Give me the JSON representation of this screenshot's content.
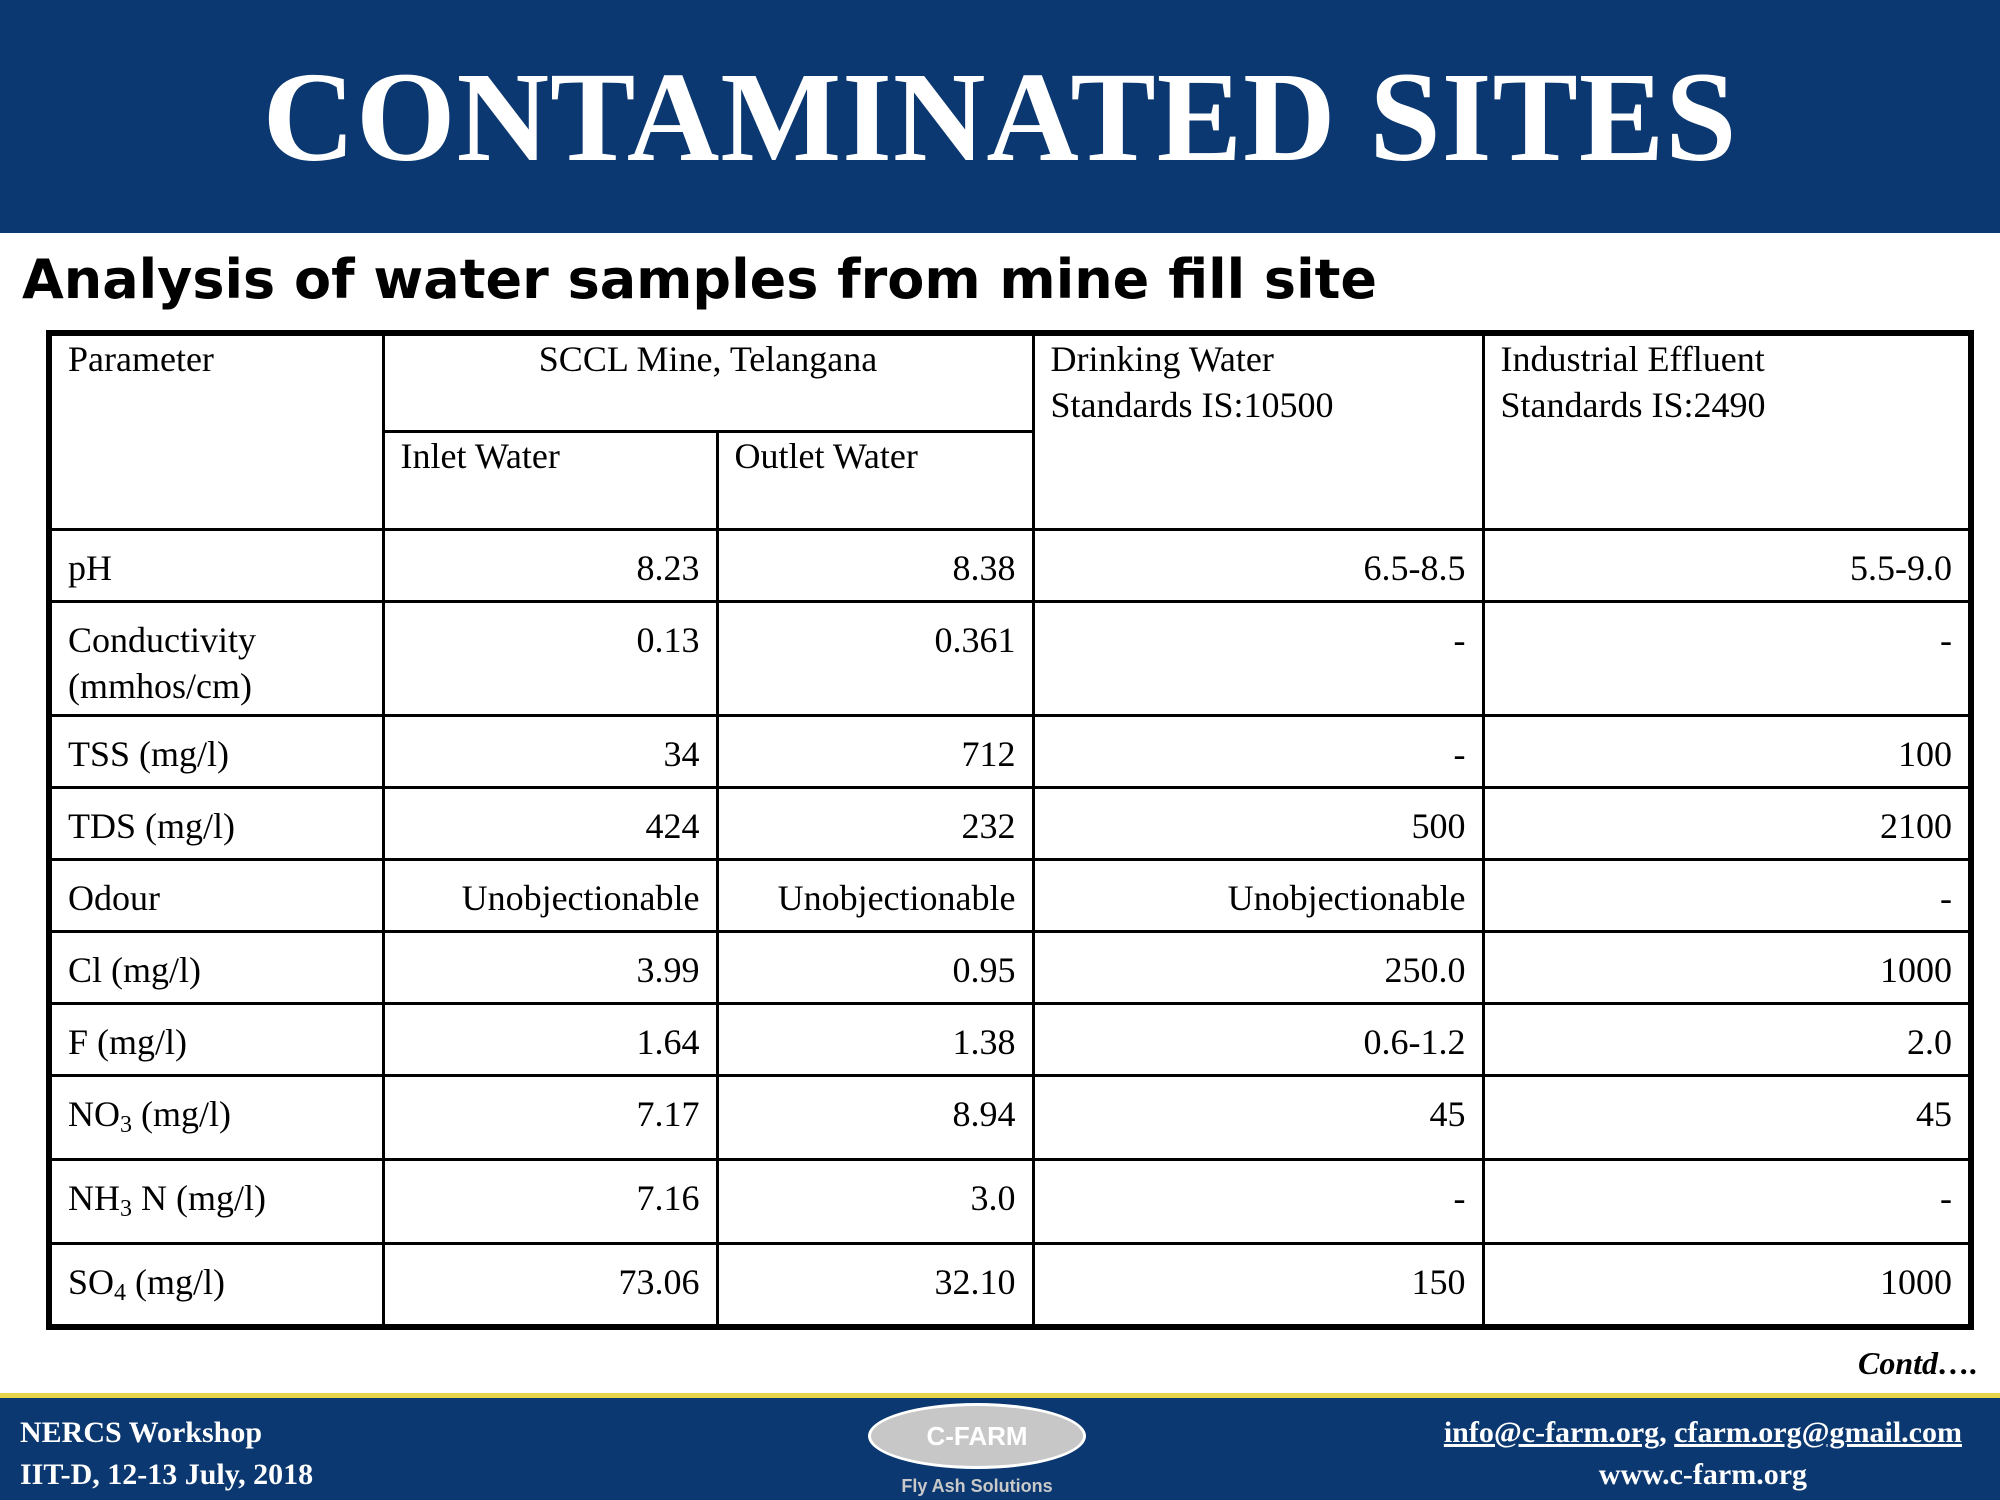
{
  "title": "CONTAMINATED SITES",
  "subtitle": "Analysis of water samples from mine fill site",
  "table": {
    "headers": {
      "parameter": "Parameter",
      "site": "SCCL Mine, Telangana",
      "inlet": "Inlet Water",
      "outlet": "Outlet Water",
      "drinking_line1": "Drinking Water",
      "drinking_line2": "Standards IS:10500",
      "industrial_line1": "Industrial Effluent",
      "industrial_line2": "Standards IS:2490"
    },
    "rows": [
      {
        "param": "pH",
        "inlet": "8.23",
        "outlet": "8.38",
        "drinking": "6.5-8.5",
        "industrial": "5.5-9.0"
      },
      {
        "param_line1": "Conductivity",
        "param_line2": "(mmhos/cm)",
        "inlet": "0.13",
        "outlet": "0.361",
        "drinking": "-",
        "industrial": "-"
      },
      {
        "param": "TSS (mg/l)",
        "inlet": "34",
        "outlet": "712",
        "drinking": "-",
        "industrial": "100"
      },
      {
        "param": "TDS (mg/l)",
        "inlet": "424",
        "outlet": "232",
        "drinking": "500",
        "industrial": "2100"
      },
      {
        "param": "Odour",
        "inlet": "Unobjectionable",
        "outlet": "Unobjectionable",
        "drinking": "Unobjectionable",
        "industrial": "-"
      },
      {
        "param": "Cl (mg/l)",
        "inlet": "3.99",
        "outlet": "0.95",
        "drinking": "250.0",
        "industrial": "1000"
      },
      {
        "param": "F (mg/l)",
        "inlet": "1.64",
        "outlet": "1.38",
        "drinking": "0.6-1.2",
        "industrial": "2.0"
      },
      {
        "param_pre": "NO",
        "param_sub": "3",
        "param_post": " (mg/l)",
        "inlet": "7.17",
        "outlet": "8.94",
        "drinking": "45",
        "industrial": "45"
      },
      {
        "param_pre": "NH",
        "param_sub": "3",
        "param_post": " N (mg/l)",
        "inlet": "7.16",
        "outlet": "3.0",
        "drinking": "-",
        "industrial": "-"
      },
      {
        "param_pre": "SO",
        "param_sub": "4",
        "param_post": " (mg/l)",
        "inlet": "73.06",
        "outlet": "32.10",
        "drinking": "150",
        "industrial": "1000"
      }
    ]
  },
  "contd": "Contd….",
  "footer": {
    "left_line1": "NERCS Workshop",
    "left_line2": "IIT-D, 12-13 July,  2018",
    "logo_text": "C-FARM",
    "tagline": "Fly Ash Solutions",
    "email1": "info@c-farm.org",
    "separator": ", ",
    "email2": "cfarm.org@gmail.com",
    "website": "www.c-farm.org"
  }
}
